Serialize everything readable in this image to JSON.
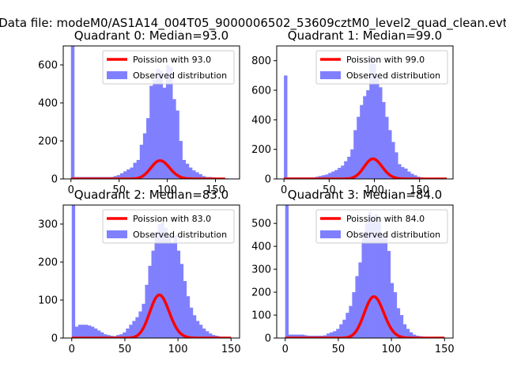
{
  "figure": {
    "suptitle": "Data file: modeM0/AS1A14_004T05_9000006502_53609cztM0_level2_quad_clean.evt"
  },
  "chart_data": [
    {
      "type": "bar",
      "title": "Quadrant 0: Median=93.0",
      "xlim": [
        -8,
        175
      ],
      "ylim": [
        0,
        700
      ],
      "xticks": [
        0,
        50,
        100,
        150
      ],
      "yticks": [
        0,
        200,
        400,
        600
      ],
      "legend": [
        "Poission with 93.0",
        "Observed distribution"
      ],
      "legend_position": "top-right",
      "bin_width": 3.4,
      "hist_x": [
        0,
        3.4,
        6.8,
        10.2,
        13.6,
        17,
        20.4,
        23.8,
        27.2,
        30.6,
        34,
        37.4,
        40.8,
        44.2,
        47.6,
        51,
        54.4,
        57.8,
        61.2,
        64.6,
        68,
        71.4,
        74.8,
        78.2,
        81.6,
        85,
        88.4,
        91.8,
        95.2,
        98.6,
        102,
        105.4,
        108.8,
        112.2,
        115.6,
        119,
        122.4,
        125.8,
        129.2,
        132.6,
        136,
        139.4,
        142.8,
        146.2,
        149.6,
        153,
        156.4,
        159.8
      ],
      "hist_y": [
        700,
        10,
        10,
        10,
        10,
        10,
        10,
        10,
        10,
        10,
        10,
        10,
        10,
        15,
        20,
        30,
        40,
        50,
        60,
        85,
        100,
        180,
        240,
        320,
        490,
        520,
        580,
        570,
        480,
        600,
        590,
        420,
        360,
        200,
        100,
        80,
        60,
        45,
        35,
        25,
        15,
        10,
        10,
        8,
        6,
        5,
        4,
        3
      ],
      "poisson_lambda": 93.0,
      "poisson_scale": 2335,
      "poisson_max_x": 160
    },
    {
      "type": "bar",
      "title": "Quadrant 1: Median=99.0",
      "xlim": [
        -8,
        187
      ],
      "ylim": [
        0,
        900
      ],
      "xticks": [
        0,
        50,
        100,
        150
      ],
      "yticks": [
        0,
        200,
        400,
        600,
        800
      ],
      "legend": [
        "Poission with 99.0",
        "Observed distribution"
      ],
      "legend_position": "top-right",
      "bin_width": 3.5,
      "hist_x": [
        0,
        3.5,
        7,
        10.5,
        14,
        17.5,
        21,
        24.5,
        28,
        31.5,
        35,
        38.5,
        42,
        45.5,
        49,
        52.5,
        56,
        59.5,
        63,
        66.5,
        70,
        73.5,
        77,
        80.5,
        84,
        87.5,
        91,
        94.5,
        98,
        101.5,
        105,
        108.5,
        112,
        115.5,
        119,
        122.5,
        126,
        129.5,
        133,
        136.5,
        140,
        143.5,
        147,
        150.5,
        154,
        157.5,
        161,
        164.5
      ],
      "hist_y": [
        700,
        10,
        10,
        10,
        10,
        10,
        10,
        10,
        10,
        10,
        15,
        20,
        25,
        30,
        40,
        50,
        60,
        75,
        90,
        120,
        150,
        200,
        330,
        420,
        500,
        560,
        600,
        830,
        780,
        700,
        620,
        520,
        420,
        330,
        250,
        180,
        100,
        80,
        70,
        50,
        35,
        25,
        15,
        10,
        8,
        6,
        5,
        4
      ],
      "poisson_lambda": 99.0,
      "poisson_scale": 3390,
      "poisson_max_x": 180
    },
    {
      "type": "bar",
      "title": "Quadrant 2: Median=83.0",
      "xlim": [
        -8,
        158
      ],
      "ylim": [
        0,
        350
      ],
      "xticks": [
        0,
        50,
        100,
        150
      ],
      "yticks": [
        0,
        100,
        200,
        300
      ],
      "legend": [
        "Poission with 83.0",
        "Observed distribution"
      ],
      "legend_position": "top-right",
      "bin_width": 3,
      "hist_x": [
        0,
        3,
        6,
        9,
        12,
        15,
        18,
        21,
        24,
        27,
        30,
        33,
        36,
        39,
        42,
        45,
        48,
        51,
        54,
        57,
        60,
        63,
        66,
        69,
        72,
        75,
        78,
        81,
        84,
        87,
        90,
        93,
        96,
        99,
        102,
        105,
        108,
        111,
        114,
        117,
        120,
        123,
        126,
        129,
        132,
        135,
        138,
        141,
        144
      ],
      "hist_y": [
        350,
        30,
        35,
        35,
        35,
        33,
        30,
        25,
        20,
        15,
        10,
        8,
        6,
        5,
        8,
        10,
        15,
        25,
        35,
        45,
        55,
        70,
        90,
        140,
        190,
        230,
        280,
        300,
        305,
        290,
        270,
        250,
        270,
        230,
        195,
        150,
        110,
        80,
        60,
        45,
        35,
        25,
        18,
        12,
        8,
        6,
        4,
        3,
        2
      ],
      "poisson_lambda": 83.0,
      "poisson_scale": 2590,
      "poisson_max_x": 150
    },
    {
      "type": "bar",
      "title": "Quadrant 3: Median=84.0",
      "xlim": [
        -8,
        158
      ],
      "ylim": [
        0,
        580
      ],
      "xticks": [
        0,
        50,
        100,
        150
      ],
      "yticks": [
        0,
        100,
        200,
        300,
        400,
        500
      ],
      "legend": [
        "Poission with 84.0",
        "Observed distribution"
      ],
      "legend_position": "top-right",
      "bin_width": 3,
      "hist_x": [
        0,
        3,
        6,
        9,
        12,
        15,
        18,
        21,
        24,
        27,
        30,
        33,
        36,
        39,
        42,
        45,
        48,
        51,
        54,
        57,
        60,
        63,
        66,
        69,
        72,
        75,
        78,
        81,
        84,
        87,
        90,
        93,
        96,
        99,
        102,
        105,
        108,
        111,
        114,
        117,
        120,
        123,
        126,
        129,
        132,
        135,
        138,
        141,
        144
      ],
      "hist_y": [
        580,
        15,
        15,
        15,
        15,
        15,
        12,
        10,
        10,
        10,
        10,
        10,
        12,
        20,
        25,
        30,
        40,
        60,
        80,
        110,
        140,
        200,
        270,
        330,
        460,
        500,
        550,
        520,
        540,
        510,
        450,
        440,
        380,
        240,
        200,
        130,
        100,
        60,
        40,
        25,
        15,
        10,
        8,
        6,
        5,
        4,
        3,
        2,
        2
      ],
      "poisson_lambda": 84.0,
      "poisson_scale": 4150,
      "poisson_max_x": 150
    }
  ]
}
